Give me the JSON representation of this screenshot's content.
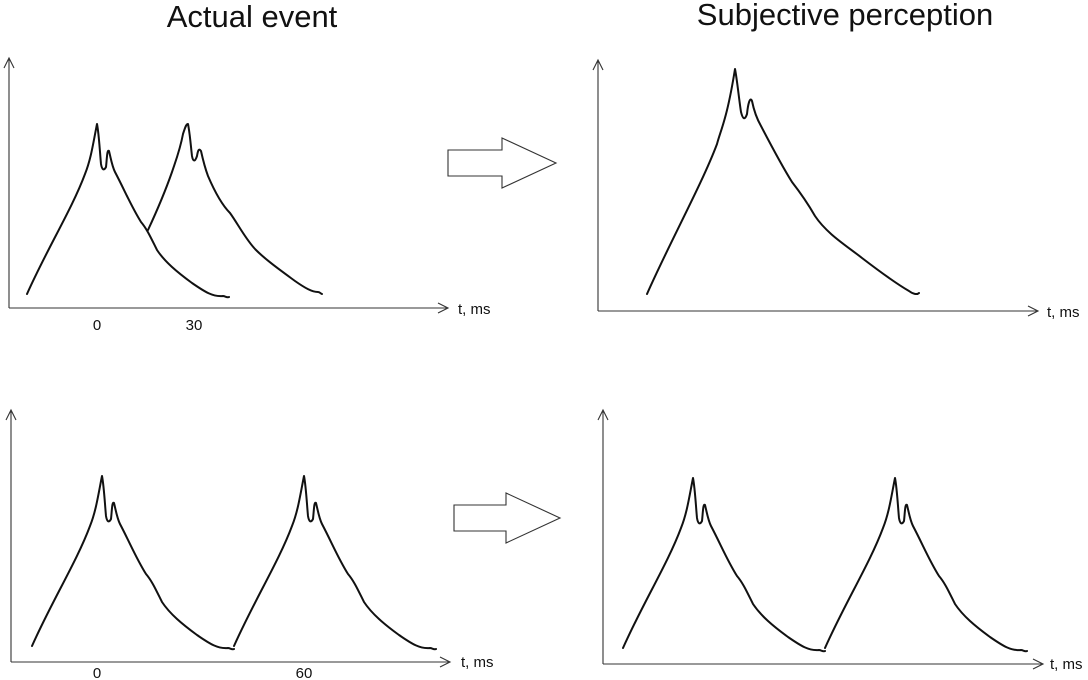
{
  "titles": {
    "left": "Actual event",
    "right": "Subjective perception"
  },
  "panels": {
    "top_left": {
      "axis_label": "t, ms",
      "ticks": [
        "0",
        "30"
      ]
    },
    "top_right": {
      "axis_label": "t, ms"
    },
    "bottom_left": {
      "axis_label": "t, ms",
      "ticks": [
        "0",
        "60"
      ]
    },
    "bottom_right": {
      "axis_label": "t, ms"
    }
  },
  "arrows": [
    "transform-arrow",
    "transform-arrow"
  ]
}
